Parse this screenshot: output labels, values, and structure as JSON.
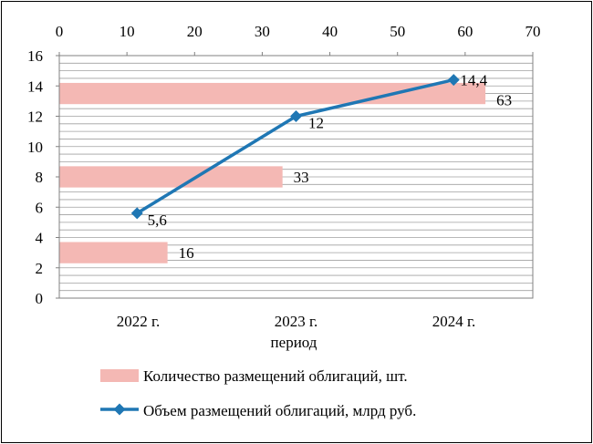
{
  "chart_data": {
    "type": "bar+line",
    "categories": [
      "2022 г.",
      "2023 г.",
      "2024 г."
    ],
    "xlabel": "период",
    "bar_axis": {
      "position": "top",
      "range": [
        0,
        70
      ],
      "ticks": [
        0,
        10,
        20,
        30,
        40,
        50,
        60,
        70
      ]
    },
    "line_axis": {
      "position": "left",
      "range": [
        0,
        16
      ],
      "ticks": [
        0,
        2,
        4,
        6,
        8,
        10,
        12,
        14,
        16
      ]
    },
    "series": [
      {
        "name": "Количество размещений облигаций, шт.",
        "type": "bar",
        "orientation": "horizontal",
        "color": "#f4b8b4",
        "values": [
          16,
          33,
          63
        ],
        "value_labels": [
          "16",
          "33",
          "63"
        ],
        "bar_center_y": [
          3,
          8,
          13.5
        ]
      },
      {
        "name": "Объем размещений облигаций, млрд  руб.",
        "type": "line",
        "marker": "diamond",
        "color": "#1f77b4",
        "values": [
          5.6,
          12,
          14.4
        ],
        "value_labels": [
          "5,6",
          "12",
          "14,4"
        ],
        "x_on_bar_axis": [
          11.5,
          35,
          58.3
        ]
      }
    ],
    "grid": true,
    "legend": "bottom"
  }
}
